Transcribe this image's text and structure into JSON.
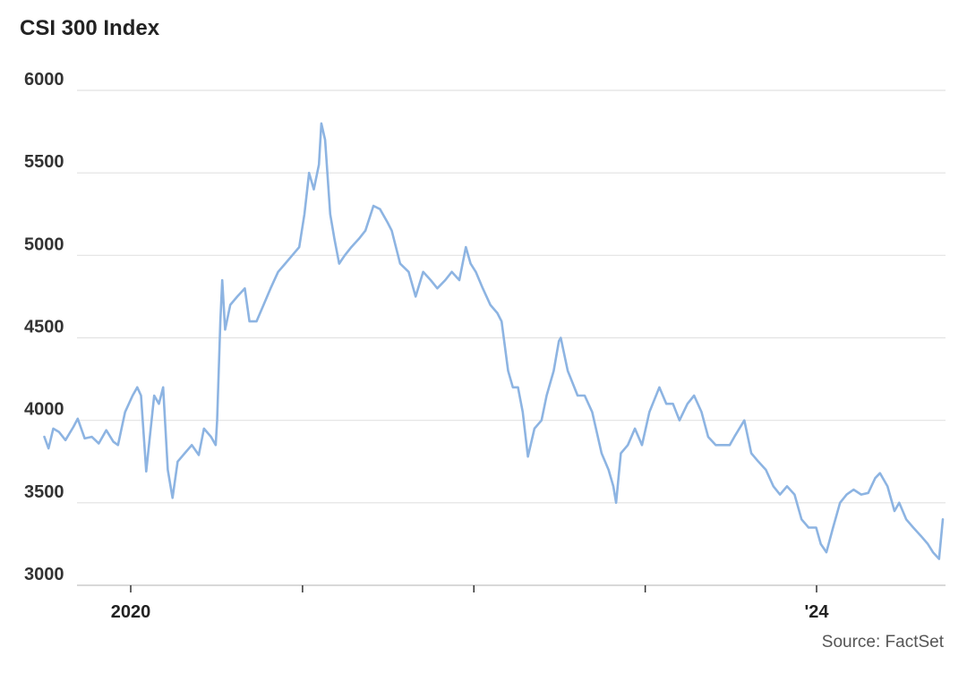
{
  "chart_data": {
    "type": "line",
    "title": "CSI 300 Index",
    "source": "Source: FactSet",
    "xlabel": "",
    "ylabel": "",
    "y_ticks": [
      3000,
      3500,
      4000,
      4500,
      5000,
      5500,
      6000
    ],
    "y_tick_labels": [
      "3000",
      "3500",
      "4000",
      "4500",
      "5000",
      "5500",
      "6000"
    ],
    "ylim": [
      3000,
      6000
    ],
    "xlim": [
      "2019-07-01",
      "2024-07-15"
    ],
    "x_ticks": [
      "2020-01-01",
      "2021-01-01",
      "2022-01-01",
      "2023-01-01",
      "2024-01-01"
    ],
    "x_tick_labels": [
      "2020",
      "",
      "",
      "",
      "'24"
    ],
    "grid": true,
    "line_color": "#8db4e2",
    "series": [
      {
        "values": [
          [
            "2019-07-01",
            3900
          ],
          [
            "2019-07-10",
            3830
          ],
          [
            "2019-07-20",
            3950
          ],
          [
            "2019-08-01",
            3930
          ],
          [
            "2019-08-15",
            3880
          ],
          [
            "2019-09-01",
            3960
          ],
          [
            "2019-09-10",
            4010
          ],
          [
            "2019-09-25",
            3890
          ],
          [
            "2019-10-10",
            3900
          ],
          [
            "2019-10-25",
            3860
          ],
          [
            "2019-11-10",
            3940
          ],
          [
            "2019-11-25",
            3870
          ],
          [
            "2019-12-05",
            3850
          ],
          [
            "2019-12-20",
            4050
          ],
          [
            "2020-01-05",
            4150
          ],
          [
            "2020-01-15",
            4200
          ],
          [
            "2020-01-23",
            4150
          ],
          [
            "2020-02-03",
            3690
          ],
          [
            "2020-02-20",
            4150
          ],
          [
            "2020-03-01",
            4100
          ],
          [
            "2020-03-10",
            4200
          ],
          [
            "2020-03-20",
            3700
          ],
          [
            "2020-03-30",
            3530
          ],
          [
            "2020-04-10",
            3750
          ],
          [
            "2020-04-25",
            3800
          ],
          [
            "2020-05-10",
            3850
          ],
          [
            "2020-05-25",
            3790
          ],
          [
            "2020-06-05",
            3950
          ],
          [
            "2020-06-20",
            3900
          ],
          [
            "2020-06-30",
            3850
          ],
          [
            "2020-07-03",
            4000
          ],
          [
            "2020-07-10",
            4600
          ],
          [
            "2020-07-14",
            4850
          ],
          [
            "2020-07-20",
            4550
          ],
          [
            "2020-07-31",
            4700
          ],
          [
            "2020-08-15",
            4750
          ],
          [
            "2020-08-31",
            4800
          ],
          [
            "2020-09-10",
            4600
          ],
          [
            "2020-09-25",
            4600
          ],
          [
            "2020-10-10",
            4700
          ],
          [
            "2020-10-25",
            4800
          ],
          [
            "2020-11-10",
            4900
          ],
          [
            "2020-11-25",
            4950
          ],
          [
            "2020-12-10",
            5000
          ],
          [
            "2020-12-25",
            5050
          ],
          [
            "2021-01-05",
            5250
          ],
          [
            "2021-01-15",
            5500
          ],
          [
            "2021-01-25",
            5400
          ],
          [
            "2021-02-05",
            5550
          ],
          [
            "2021-02-10",
            5800
          ],
          [
            "2021-02-18",
            5700
          ],
          [
            "2021-03-01",
            5250
          ],
          [
            "2021-03-10",
            5100
          ],
          [
            "2021-03-20",
            4950
          ],
          [
            "2021-04-01",
            5000
          ],
          [
            "2021-04-15",
            5050
          ],
          [
            "2021-05-01",
            5100
          ],
          [
            "2021-05-15",
            5150
          ],
          [
            "2021-06-01",
            5300
          ],
          [
            "2021-06-15",
            5280
          ],
          [
            "2021-07-01",
            5200
          ],
          [
            "2021-07-10",
            5150
          ],
          [
            "2021-07-28",
            4950
          ],
          [
            "2021-08-15",
            4900
          ],
          [
            "2021-08-30",
            4750
          ],
          [
            "2021-09-15",
            4900
          ],
          [
            "2021-10-01",
            4850
          ],
          [
            "2021-10-15",
            4800
          ],
          [
            "2021-11-01",
            4850
          ],
          [
            "2021-11-15",
            4900
          ],
          [
            "2021-12-01",
            4850
          ],
          [
            "2021-12-15",
            5050
          ],
          [
            "2021-12-25",
            4950
          ],
          [
            "2022-01-05",
            4900
          ],
          [
            "2022-01-20",
            4800
          ],
          [
            "2022-02-05",
            4700
          ],
          [
            "2022-02-20",
            4650
          ],
          [
            "2022-03-01",
            4600
          ],
          [
            "2022-03-15",
            4300
          ],
          [
            "2022-03-25",
            4200
          ],
          [
            "2022-04-05",
            4200
          ],
          [
            "2022-04-15",
            4050
          ],
          [
            "2022-04-26",
            3780
          ],
          [
            "2022-05-10",
            3950
          ],
          [
            "2022-05-25",
            4000
          ],
          [
            "2022-06-05",
            4150
          ],
          [
            "2022-06-20",
            4300
          ],
          [
            "2022-07-01",
            4480
          ],
          [
            "2022-07-05",
            4500
          ],
          [
            "2022-07-20",
            4300
          ],
          [
            "2022-08-10",
            4150
          ],
          [
            "2022-08-25",
            4150
          ],
          [
            "2022-09-10",
            4050
          ],
          [
            "2022-09-30",
            3800
          ],
          [
            "2022-10-15",
            3700
          ],
          [
            "2022-10-25",
            3600
          ],
          [
            "2022-10-31",
            3500
          ],
          [
            "2022-11-10",
            3800
          ],
          [
            "2022-11-25",
            3850
          ],
          [
            "2022-12-10",
            3950
          ],
          [
            "2022-12-25",
            3850
          ],
          [
            "2023-01-10",
            4050
          ],
          [
            "2023-01-31",
            4200
          ],
          [
            "2023-02-15",
            4100
          ],
          [
            "2023-03-01",
            4100
          ],
          [
            "2023-03-15",
            4000
          ],
          [
            "2023-04-01",
            4100
          ],
          [
            "2023-04-15",
            4150
          ],
          [
            "2023-05-01",
            4050
          ],
          [
            "2023-05-15",
            3900
          ],
          [
            "2023-05-31",
            3850
          ],
          [
            "2023-06-15",
            3850
          ],
          [
            "2023-06-30",
            3850
          ],
          [
            "2023-07-10",
            3900
          ],
          [
            "2023-07-31",
            4000
          ],
          [
            "2023-08-15",
            3800
          ],
          [
            "2023-08-30",
            3750
          ],
          [
            "2023-09-15",
            3700
          ],
          [
            "2023-10-01",
            3600
          ],
          [
            "2023-10-15",
            3550
          ],
          [
            "2023-10-30",
            3600
          ],
          [
            "2023-11-15",
            3550
          ],
          [
            "2023-11-30",
            3400
          ],
          [
            "2023-12-15",
            3350
          ],
          [
            "2023-12-31",
            3350
          ],
          [
            "2024-01-10",
            3250
          ],
          [
            "2024-01-22",
            3200
          ],
          [
            "2024-02-05",
            3350
          ],
          [
            "2024-02-20",
            3500
          ],
          [
            "2024-03-05",
            3550
          ],
          [
            "2024-03-20",
            3580
          ],
          [
            "2024-04-05",
            3550
          ],
          [
            "2024-04-20",
            3560
          ],
          [
            "2024-05-05",
            3650
          ],
          [
            "2024-05-15",
            3680
          ],
          [
            "2024-05-31",
            3600
          ],
          [
            "2024-06-15",
            3450
          ],
          [
            "2024-06-25",
            3500
          ],
          [
            "2024-07-10",
            3400
          ],
          [
            "2024-07-25",
            3350
          ],
          [
            "2024-08-10",
            3300
          ],
          [
            "2024-08-25",
            3250
          ],
          [
            "2024-09-05",
            3200
          ],
          [
            "2024-09-18",
            3160
          ],
          [
            "2024-09-26",
            3400
          ]
        ]
      }
    ]
  }
}
